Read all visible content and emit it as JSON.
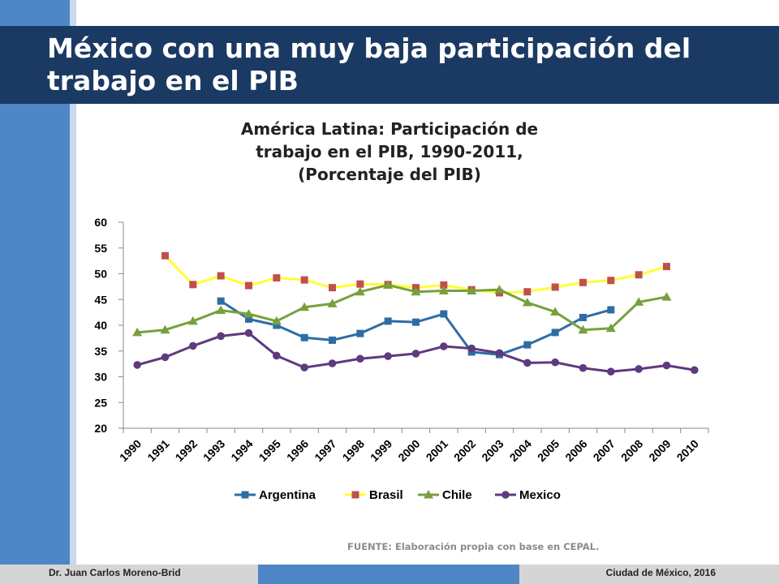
{
  "slide": {
    "title": "México con una muy baja participación del trabajo en el PIB",
    "source": "FUENTE: Elaboración propia con base en CEPAL.",
    "author": "Dr. Juan Carlos Moreno-Brid",
    "place_date": "Ciudad de México, 2016"
  },
  "colors": {
    "dark_blue": "#1b3a63",
    "mid_blue": "#4f86c6",
    "Argentina": "#2e6da4",
    "Brasil": "#ffff33",
    "Brasil_marker": "#c0504d",
    "Chile": "#77a03c",
    "Mexico": "#5e3a7e"
  },
  "chart_data": {
    "type": "line",
    "title": "América Latina: Participación de trabajo en el PIB, 1990-2011, (Porcentaje del PIB)",
    "title_lines": [
      "América Latina: Participación de",
      "trabajo en el PIB, 1990-2011,",
      "(Porcentaje del PIB)"
    ],
    "xlabel": "",
    "ylabel": "",
    "categories": [
      "1990",
      "1991",
      "1992",
      "1993",
      "1994",
      "1995",
      "1996",
      "1997",
      "1998",
      "1999",
      "2000",
      "2001",
      "2002",
      "2003",
      "2004",
      "2005",
      "2006",
      "2007",
      "2008",
      "2009",
      "2010"
    ],
    "ylim": [
      20,
      60
    ],
    "yticks": [
      20,
      25,
      30,
      35,
      40,
      45,
      50,
      55,
      60
    ],
    "grid": false,
    "legend": "bottom",
    "series": [
      {
        "name": "Argentina",
        "marker": "square",
        "values": [
          null,
          null,
          null,
          44.7,
          41.2,
          40.0,
          37.6,
          37.1,
          38.4,
          40.8,
          40.6,
          42.2,
          34.8,
          34.3,
          36.2,
          38.6,
          41.5,
          43.0,
          null,
          null,
          null
        ]
      },
      {
        "name": "Brasil",
        "marker": "square",
        "values": [
          null,
          53.5,
          47.9,
          49.6,
          47.7,
          49.2,
          48.8,
          47.3,
          48.0,
          47.9,
          47.3,
          47.8,
          46.9,
          46.3,
          46.5,
          47.4,
          48.3,
          48.7,
          49.8,
          51.4,
          null
        ]
      },
      {
        "name": "Chile",
        "marker": "triangle",
        "values": [
          38.6,
          39.1,
          40.8,
          42.9,
          42.2,
          40.8,
          43.5,
          44.2,
          46.5,
          47.8,
          46.5,
          46.7,
          46.7,
          46.9,
          44.4,
          42.6,
          39.1,
          39.4,
          44.5,
          45.5,
          null
        ]
      },
      {
        "name": "Mexico",
        "marker": "circle",
        "values": [
          32.3,
          33.8,
          36.0,
          37.9,
          38.5,
          34.1,
          31.8,
          32.6,
          33.5,
          34.0,
          34.5,
          35.9,
          35.5,
          34.6,
          32.7,
          32.8,
          31.7,
          31.0,
          31.5,
          32.2,
          31.3
        ]
      }
    ]
  }
}
